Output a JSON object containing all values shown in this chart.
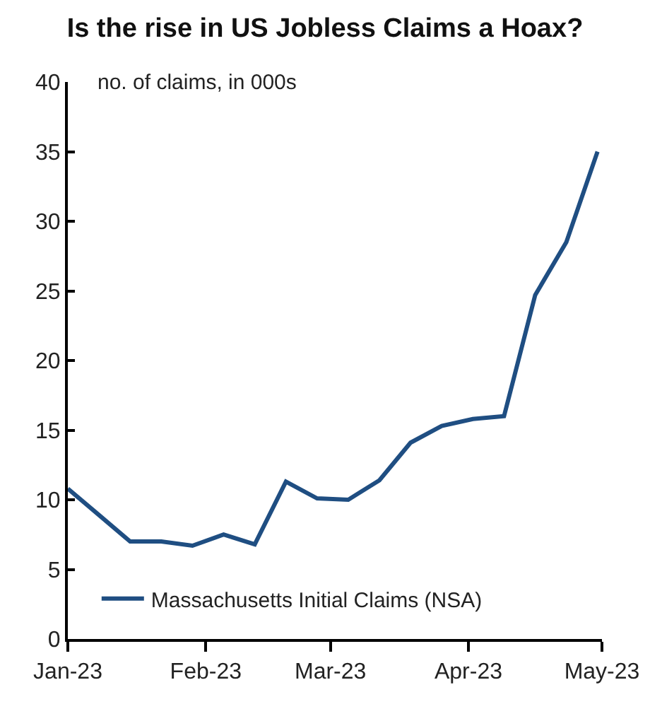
{
  "chart_data": {
    "type": "line",
    "title": "Is the rise in US Jobless Claims a Hoax?",
    "ylabel": "no. of claims, in 000s",
    "x": [
      "2023-01-01",
      "2023-01-08",
      "2023-01-15",
      "2023-01-22",
      "2023-01-29",
      "2023-02-05",
      "2023-02-12",
      "2023-02-19",
      "2023-02-26",
      "2023-03-05",
      "2023-03-12",
      "2023-03-19",
      "2023-03-26",
      "2023-04-02",
      "2023-04-09",
      "2023-04-16",
      "2023-04-23",
      "2023-04-30"
    ],
    "series": [
      {
        "name": "Massachusetts Initial Claims (NSA)",
        "color": "#1f4e82",
        "values": [
          10.8,
          8.9,
          7.0,
          7.0,
          6.7,
          7.5,
          6.8,
          11.3,
          10.1,
          10.0,
          11.4,
          14.1,
          15.3,
          15.8,
          16.0,
          24.7,
          28.5,
          35.0
        ]
      }
    ],
    "xlim": [
      "2023-01-01",
      "2023-05-01"
    ],
    "xticks": [
      {
        "value": "2023-01-01",
        "label": "Jan-23"
      },
      {
        "value": "2023-02-01",
        "label": "Feb-23"
      },
      {
        "value": "2023-03-01",
        "label": "Mar-23"
      },
      {
        "value": "2023-04-01",
        "label": "Apr-23"
      },
      {
        "value": "2023-05-01",
        "label": "May-23"
      }
    ],
    "ylim": [
      0,
      40
    ],
    "yticks": [
      0,
      5,
      10,
      15,
      20,
      25,
      30,
      35,
      40
    ],
    "grid": false,
    "legend": "bottom",
    "marker": "none",
    "line_style": "solid"
  }
}
